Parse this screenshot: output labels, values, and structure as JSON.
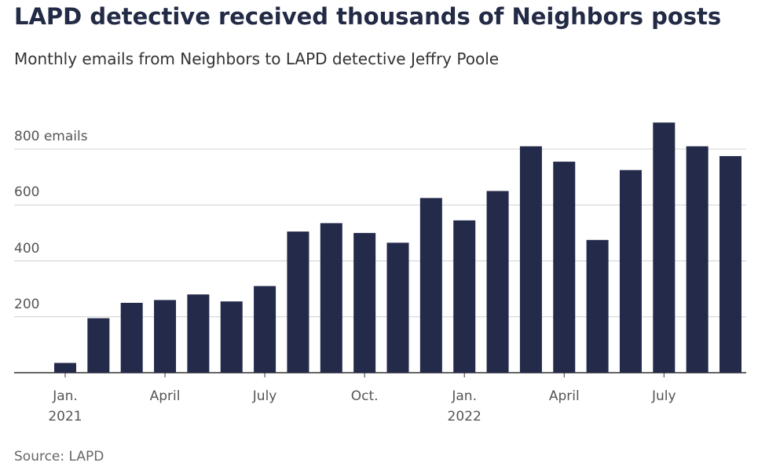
{
  "chart_data": {
    "type": "bar",
    "title": "LAPD detective received thousands of Neighbors posts",
    "subtitle": "Monthly emails from Neighbors to LAPD detective Jeffry Poole",
    "source": "Source: LAPD",
    "categories": [
      "Jan.\n2021",
      null,
      null,
      "April",
      null,
      null,
      "July",
      null,
      null,
      "Oct.",
      null,
      null,
      "Jan.\n2022",
      null,
      null,
      "April",
      null,
      null,
      "July",
      null,
      null
    ],
    "values": [
      35,
      195,
      250,
      260,
      280,
      255,
      310,
      505,
      535,
      500,
      465,
      625,
      545,
      650,
      810,
      755,
      475,
      725,
      895,
      810,
      775
    ],
    "color": "#232a4a",
    "ylim": [
      0,
      900
    ],
    "yticks": [
      200,
      400,
      600,
      {
        "value": 800,
        "label": "800 emails"
      }
    ],
    "grid": true
  }
}
